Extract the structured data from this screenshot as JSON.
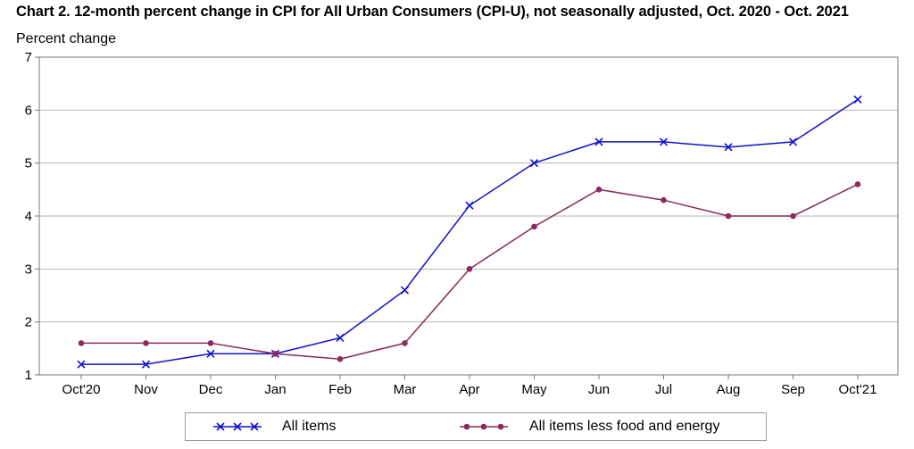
{
  "chart_data": {
    "type": "line",
    "title": "Chart 2. 12-month percent change in CPI for All Urban Consumers (CPI-U), not seasonally adjusted, Oct. 2020 - Oct. 2021",
    "ylabel": "Percent change",
    "xlabel": "",
    "categories": [
      "Oct'20",
      "Nov",
      "Dec",
      "Jan",
      "Feb",
      "Mar",
      "Apr",
      "May",
      "Jun",
      "Jul",
      "Aug",
      "Sep",
      "Oct'21"
    ],
    "ylim": [
      1,
      7
    ],
    "yticks": [
      1,
      2,
      3,
      4,
      5,
      6,
      7
    ],
    "grid": "horizontal",
    "legend_position": "bottom",
    "series": [
      {
        "name": "All items",
        "color": "#1010c8",
        "marker": "x",
        "values": [
          1.2,
          1.2,
          1.4,
          1.4,
          1.7,
          2.6,
          4.2,
          5.0,
          5.4,
          5.4,
          5.3,
          5.4,
          6.2
        ]
      },
      {
        "name": "All items less food and energy",
        "color": "#8b2a5f",
        "marker": "circle",
        "values": [
          1.6,
          1.6,
          1.6,
          1.4,
          1.3,
          1.6,
          3.0,
          3.8,
          4.5,
          4.3,
          4.0,
          4.0,
          4.6
        ]
      }
    ]
  }
}
